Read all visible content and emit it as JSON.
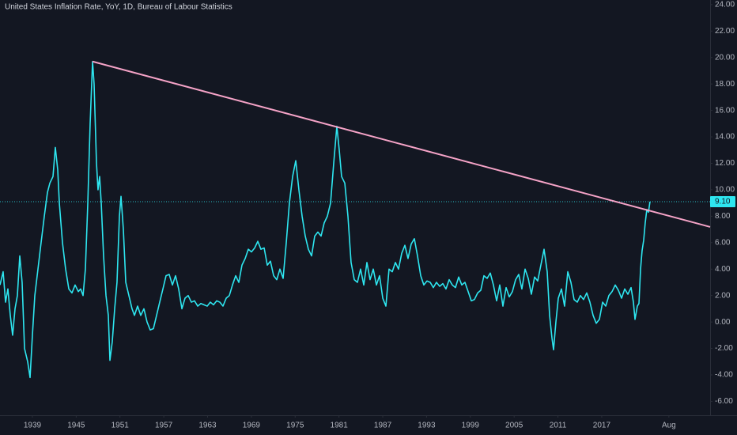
{
  "chart_data": {
    "type": "line",
    "title": "United States Inflation Rate, YoY, 1D, Bureau of Labour Statistics",
    "xlim": [
      1934.56,
      2031.85
    ],
    "ylim": [
      -7.05,
      24.35
    ],
    "xticks": [
      1939,
      1945,
      1951,
      1957,
      1963,
      1969,
      1975,
      1981,
      1987,
      1993,
      1999,
      2005,
      2011,
      2017,
      {
        "value": 2026.2,
        "label": "Aug"
      }
    ],
    "yticks": [
      {
        "value": 24,
        "label": "24.00"
      },
      {
        "value": 22,
        "label": "22.00"
      },
      {
        "value": 20,
        "label": "20.00"
      },
      {
        "value": 18,
        "label": "18.00"
      },
      {
        "value": 16,
        "label": "16.00"
      },
      {
        "value": 14,
        "label": "14.00"
      },
      {
        "value": 12,
        "label": "12.00"
      },
      {
        "value": 10,
        "label": "10.00"
      },
      {
        "value": 8,
        "label": "8.00"
      },
      {
        "value": 6,
        "label": "6.00"
      },
      {
        "value": 4,
        "label": "4.00"
      },
      {
        "value": 2,
        "label": "2.00"
      },
      {
        "value": 0,
        "label": "0.00"
      },
      {
        "value": -2,
        "label": "-2.00"
      },
      {
        "value": -4,
        "label": "-4.00"
      },
      {
        "value": -6,
        "label": "-6.00"
      }
    ],
    "grid": false,
    "color": "#2ee6f0",
    "x": [
      1934.56,
      1934.99,
      1935.32,
      1935.64,
      1935.97,
      1936.29,
      1936.62,
      1936.94,
      1937.27,
      1937.59,
      1937.92,
      1938.35,
      1938.68,
      1939.0,
      1939.33,
      1939.76,
      1940.19,
      1940.63,
      1941.06,
      1941.39,
      1941.82,
      1942.14,
      1942.47,
      1942.69,
      1943.12,
      1943.55,
      1943.99,
      1944.42,
      1944.85,
      1945.29,
      1945.61,
      1945.94,
      1946.26,
      1946.59,
      1946.91,
      1947.24,
      1947.45,
      1947.78,
      1947.99,
      1948.21,
      1948.43,
      1948.75,
      1949.08,
      1949.4,
      1949.62,
      1949.94,
      1950.27,
      1950.59,
      1950.92,
      1951.14,
      1951.46,
      1951.79,
      1952.22,
      1952.65,
      1952.98,
      1953.41,
      1953.84,
      1954.28,
      1954.71,
      1955.14,
      1955.58,
      1956.01,
      1956.44,
      1956.88,
      1957.31,
      1957.74,
      1958.18,
      1958.61,
      1959.04,
      1959.48,
      1959.91,
      1960.34,
      1960.78,
      1961.21,
      1961.65,
      1962.08,
      1962.51,
      1962.95,
      1963.38,
      1963.81,
      1964.25,
      1964.68,
      1965.11,
      1965.55,
      1965.98,
      1966.41,
      1966.85,
      1967.28,
      1967.71,
      1968.15,
      1968.58,
      1969.01,
      1969.45,
      1969.88,
      1970.31,
      1970.75,
      1971.18,
      1971.61,
      1972.05,
      1972.48,
      1972.91,
      1973.35,
      1973.78,
      1974.21,
      1974.65,
      1975.08,
      1975.51,
      1975.95,
      1976.38,
      1976.81,
      1977.25,
      1977.68,
      1978.11,
      1978.55,
      1978.98,
      1979.41,
      1979.85,
      1980.28,
      1980.71,
      1981.04,
      1981.36,
      1981.8,
      1982.23,
      1982.66,
      1983.1,
      1983.53,
      1983.96,
      1984.4,
      1984.83,
      1985.26,
      1985.7,
      1986.13,
      1986.56,
      1987.0,
      1987.43,
      1987.86,
      1988.3,
      1988.73,
      1989.16,
      1989.6,
      1990.03,
      1990.46,
      1990.9,
      1991.33,
      1991.76,
      1992.2,
      1992.63,
      1993.06,
      1993.5,
      1993.93,
      1994.36,
      1994.8,
      1995.23,
      1995.66,
      1996.1,
      1996.53,
      1996.96,
      1997.4,
      1997.83,
      1998.26,
      1998.7,
      1999.13,
      1999.56,
      2000.0,
      2000.43,
      2000.86,
      2001.3,
      2001.73,
      2002.16,
      2002.6,
      2003.03,
      2003.46,
      2003.9,
      2004.33,
      2004.76,
      2005.2,
      2005.63,
      2006.06,
      2006.5,
      2006.93,
      2007.36,
      2007.8,
      2008.23,
      2008.66,
      2009.1,
      2009.53,
      2009.86,
      2010.18,
      2010.4,
      2010.72,
      2011.05,
      2011.48,
      2011.91,
      2012.35,
      2012.78,
      2013.21,
      2013.65,
      2014.08,
      2014.51,
      2014.95,
      2015.38,
      2015.82,
      2016.25,
      2016.68,
      2017.12,
      2017.55,
      2017.98,
      2018.42,
      2018.85,
      2019.28,
      2019.72,
      2020.15,
      2020.58,
      2021.02,
      2021.34,
      2021.56,
      2021.88,
      2022.1,
      2022.32,
      2022.53,
      2022.75,
      2022.96,
      2023.18,
      2023.4,
      2023.61
    ],
    "values": [
      2.8,
      3.8,
      1.5,
      2.5,
      0.5,
      -1,
      1,
      2,
      5,
      3,
      -2,
      -3,
      -4.2,
      -1,
      2,
      4,
      6,
      8,
      9.8,
      10.5,
      11,
      13.2,
      11.5,
      9,
      6,
      4,
      2.5,
      2.2,
      2.8,
      2.3,
      2.5,
      2,
      4,
      9,
      15,
      19.7,
      18,
      12,
      10,
      11,
      9,
      5,
      2,
      0.5,
      -2.9,
      -1.5,
      1,
      3,
      8,
      9.5,
      7,
      3,
      2,
      1,
      0.5,
      1.2,
      0.5,
      1,
      0,
      -0.6,
      -0.5,
      0.5,
      1.5,
      2.5,
      3.5,
      3.6,
      2.8,
      3.5,
      2.5,
      1,
      1.8,
      2,
      1.5,
      1.6,
      1.2,
      1.4,
      1.3,
      1.2,
      1.5,
      1.3,
      1.6,
      1.5,
      1.2,
      1.8,
      2,
      2.8,
      3.5,
      3,
      4.3,
      4.8,
      5.5,
      5.3,
      5.6,
      6.1,
      5.5,
      5.6,
      4.3,
      4.6,
      3.5,
      3.2,
      4,
      3.3,
      6,
      9,
      11,
      12.2,
      10,
      8,
      6.5,
      5.5,
      5,
      6.5,
      6.8,
      6.5,
      7.5,
      8,
      9,
      12,
      14.8,
      13,
      11,
      10.5,
      8,
      4.5,
      3.2,
      3,
      4,
      2.8,
      4.5,
      3.2,
      4,
      2.8,
      3.5,
      1.8,
      1.2,
      4,
      3.8,
      4.5,
      4,
      5.2,
      5.8,
      4.8,
      5.9,
      6.3,
      5,
      3.5,
      2.8,
      3.1,
      3,
      2.6,
      3,
      2.7,
      2.9,
      2.5,
      3.2,
      2.8,
      2.6,
      3.4,
      2.8,
      3,
      2.3,
      1.6,
      1.7,
      2.2,
      2.4,
      3.5,
      3.3,
      3.7,
      2.8,
      1.6,
      2.8,
      1.2,
      2.6,
      1.9,
      2.3,
      3.2,
      3.6,
      2.5,
      4,
      3.3,
      2.1,
      3.4,
      3.1,
      4.3,
      5.5,
      3.8,
      0.5,
      -1.2,
      -2.1,
      0,
      1.8,
      2.5,
      1.2,
      3.8,
      3,
      1.7,
      1.5,
      2,
      1.7,
      2.2,
      1.5,
      0.5,
      -0.1,
      0.2,
      1.5,
      1.2,
      2,
      2.3,
      2.8,
      2.4,
      1.8,
      2.5,
      2.1,
      2.6,
      1.5,
      0.2,
      1.2,
      1.4,
      4,
      5.4,
      6.2,
      7.5,
      8.5,
      8.3,
      9.1
    ],
    "trendline": {
      "x": [
        1947.24,
        2031.85
      ],
      "values": [
        19.7,
        7.19
      ],
      "color": "#f5a3c7"
    },
    "price_line": {
      "value": 9.1,
      "label": "9.10",
      "color": "#2ee6f0"
    }
  }
}
